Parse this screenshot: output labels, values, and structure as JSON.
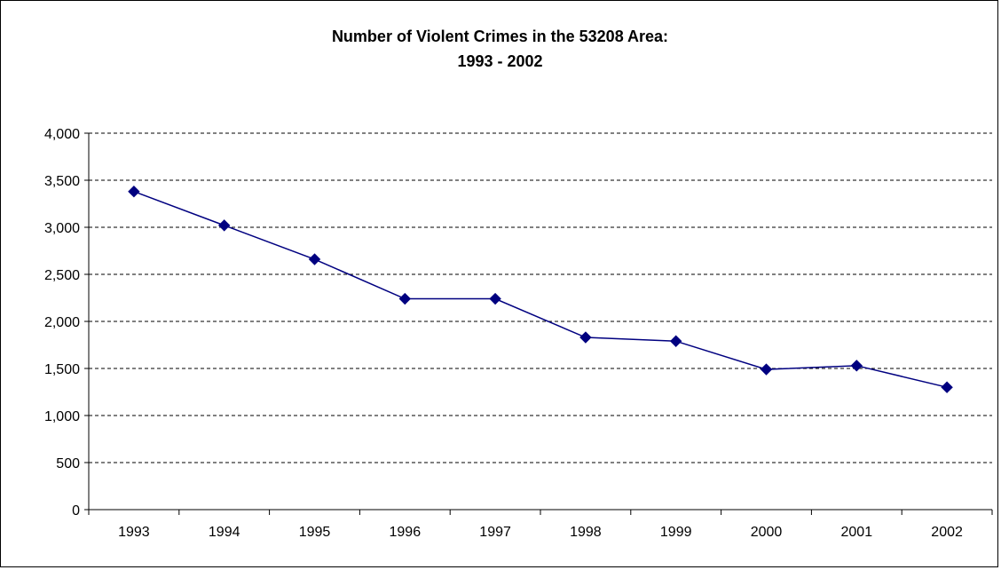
{
  "chart_data": {
    "type": "line",
    "title": "Number of Violent Crimes in the 53208 Area:",
    "subtitle": "1993 - 2002",
    "xlabel": "",
    "ylabel": "",
    "categories": [
      "1993",
      "1994",
      "1995",
      "1996",
      "1997",
      "1998",
      "1999",
      "2000",
      "2001",
      "2002"
    ],
    "series": [
      {
        "values": [
          3380,
          3020,
          2660,
          2240,
          2240,
          1830,
          1790,
          1490,
          1530,
          1300
        ],
        "color": "#000080",
        "marker": "diamond"
      }
    ],
    "ylim": [
      0,
      4000
    ],
    "yticks": [
      0,
      500,
      1000,
      1500,
      2000,
      2500,
      3000,
      3500,
      4000
    ],
    "ytick_labels": [
      "0",
      "500",
      "1,000",
      "1,500",
      "2,000",
      "2,500",
      "3,000",
      "3,500",
      "4,000"
    ],
    "grid": true,
    "legend": "none"
  }
}
